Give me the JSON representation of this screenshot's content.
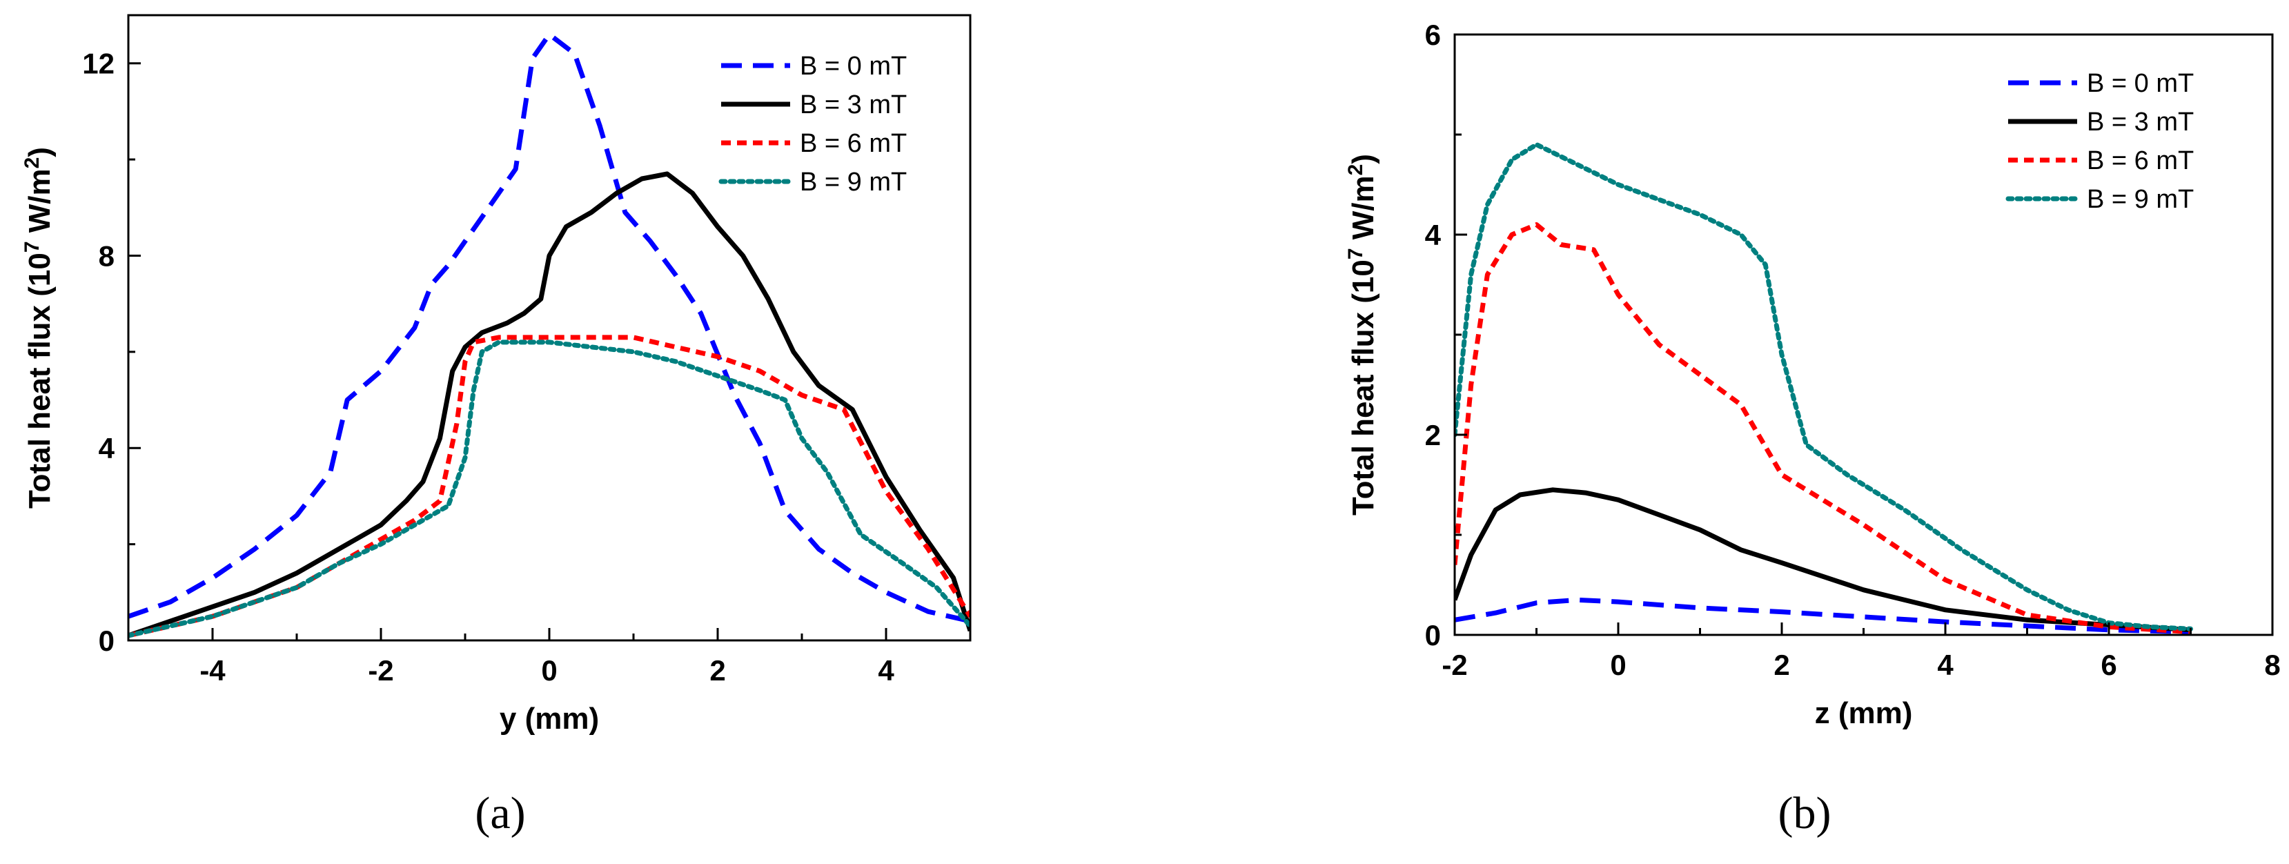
{
  "chart_data": [
    {
      "type": "line",
      "caption": "(a)",
      "xlabel": "y (mm)",
      "ylabel": {
        "pre": "Total heat flux (10",
        "sup": "7",
        "mid": " W/m",
        "sup2": "2",
        "post": ")"
      },
      "xlim": [
        -5,
        5
      ],
      "ylim": [
        0,
        13
      ],
      "xticks": [
        -4,
        -2,
        0,
        2,
        4
      ],
      "xtick_labels": [
        "-4",
        "-2",
        "0",
        "2",
        "4"
      ],
      "yticks": [
        0,
        4,
        8,
        12
      ],
      "ytick_labels": [
        "0",
        "4",
        "8",
        "12"
      ],
      "legend_position": "top-right",
      "series": [
        {
          "name": "B = 0 mT",
          "color": "#0000ff",
          "style": "dash",
          "x": [
            -5,
            -4.5,
            -4,
            -3.5,
            -3,
            -2.6,
            -2.4,
            -2,
            -1.6,
            -1.4,
            -1.2,
            -0.8,
            -0.4,
            -0.2,
            0,
            0.3,
            0.6,
            0.9,
            1.2,
            1.5,
            1.8,
            2.2,
            2.5,
            2.8,
            3.2,
            3.6,
            4,
            4.5,
            5
          ],
          "y": [
            0.5,
            0.8,
            1.3,
            1.9,
            2.6,
            3.5,
            5.0,
            5.6,
            6.5,
            7.4,
            7.8,
            8.8,
            9.8,
            12.1,
            12.6,
            12.2,
            10.7,
            8.9,
            8.3,
            7.6,
            6.8,
            5.1,
            4.1,
            2.7,
            1.9,
            1.4,
            1.0,
            0.6,
            0.4
          ]
        },
        {
          "name": "B = 3 mT",
          "color": "#000000",
          "style": "solid",
          "x": [
            -5,
            -4.5,
            -4,
            -3.5,
            -3,
            -2.5,
            -2,
            -1.7,
            -1.5,
            -1.3,
            -1.15,
            -1.0,
            -0.8,
            -0.5,
            -0.3,
            -0.1,
            0,
            0.2,
            0.5,
            0.8,
            1.1,
            1.4,
            1.7,
            2.0,
            2.3,
            2.6,
            2.9,
            3.2,
            3.6,
            4.0,
            4.4,
            4.8,
            5
          ],
          "y": [
            0.1,
            0.4,
            0.7,
            1.0,
            1.4,
            1.9,
            2.4,
            2.9,
            3.3,
            4.2,
            5.6,
            6.1,
            6.4,
            6.6,
            6.8,
            7.1,
            8.0,
            8.6,
            8.9,
            9.3,
            9.6,
            9.7,
            9.3,
            8.6,
            8.0,
            7.1,
            6.0,
            5.3,
            4.8,
            3.4,
            2.3,
            1.3,
            0.2
          ]
        },
        {
          "name": "B = 6 mT",
          "color": "#ff0000",
          "style": "dash-short",
          "x": [
            -5,
            -4.5,
            -4,
            -3.5,
            -3,
            -2.5,
            -2,
            -1.6,
            -1.3,
            -1.1,
            -1.0,
            -0.9,
            -0.6,
            -0.3,
            0,
            0.5,
            1.0,
            1.5,
            2.0,
            2.5,
            3.0,
            3.5,
            4.0,
            4.5,
            5
          ],
          "y": [
            0.1,
            0.3,
            0.5,
            0.8,
            1.1,
            1.6,
            2.1,
            2.5,
            2.9,
            4.5,
            5.8,
            6.2,
            6.3,
            6.3,
            6.3,
            6.3,
            6.3,
            6.1,
            5.9,
            5.6,
            5.1,
            4.8,
            3.1,
            1.9,
            0.5
          ]
        },
        {
          "name": "B = 9 mT",
          "color": "#008080",
          "style": "dot",
          "x": [
            -5,
            -4.5,
            -4,
            -3.5,
            -3,
            -2.5,
            -2,
            -1.6,
            -1.2,
            -1.0,
            -0.9,
            -0.8,
            -0.6,
            -0.3,
            0,
            0.5,
            1.0,
            1.5,
            2.0,
            2.5,
            2.8,
            3.0,
            3.3,
            3.7,
            4.2,
            4.6,
            5
          ],
          "y": [
            0.1,
            0.3,
            0.5,
            0.8,
            1.1,
            1.6,
            2.0,
            2.4,
            2.8,
            3.8,
            5.2,
            6.0,
            6.2,
            6.2,
            6.2,
            6.1,
            6.0,
            5.8,
            5.5,
            5.2,
            5.0,
            4.2,
            3.5,
            2.2,
            1.6,
            1.1,
            0.3
          ]
        }
      ]
    },
    {
      "type": "line",
      "caption": "(b)",
      "xlabel": "z (mm)",
      "ylabel": {
        "pre": "Total heat flux (10",
        "sup": "7",
        "mid": " W/m",
        "sup2": "2",
        "post": ")"
      },
      "xlim": [
        -2,
        8
      ],
      "ylim": [
        0,
        6
      ],
      "xticks": [
        -2,
        0,
        2,
        4,
        6,
        8
      ],
      "xtick_labels": [
        "-2",
        "0",
        "2",
        "4",
        "6",
        "8"
      ],
      "yticks": [
        0,
        2,
        4,
        6
      ],
      "ytick_labels": [
        "0",
        "2",
        "4",
        "6"
      ],
      "legend_position": "top-right",
      "series": [
        {
          "name": "B = 0 mT",
          "color": "#0000ff",
          "style": "dash",
          "x": [
            -2,
            -1.5,
            -1,
            -0.5,
            0,
            0.5,
            1,
            1.5,
            2,
            3,
            4,
            5,
            6,
            7
          ],
          "y": [
            0.15,
            0.22,
            0.32,
            0.35,
            0.33,
            0.3,
            0.27,
            0.25,
            0.23,
            0.18,
            0.13,
            0.09,
            0.05,
            0.03
          ]
        },
        {
          "name": "B = 3 mT",
          "color": "#000000",
          "style": "solid",
          "x": [
            -2,
            -1.8,
            -1.5,
            -1.2,
            -0.8,
            -0.4,
            0,
            0.5,
            1,
            1.5,
            2,
            3,
            4,
            5,
            6,
            7
          ],
          "y": [
            0.35,
            0.8,
            1.25,
            1.4,
            1.45,
            1.42,
            1.35,
            1.2,
            1.05,
            0.85,
            0.72,
            0.45,
            0.25,
            0.15,
            0.1,
            0.05
          ]
        },
        {
          "name": "B = 6 mT",
          "color": "#ff0000",
          "style": "dash-short",
          "x": [
            -2,
            -1.8,
            -1.6,
            -1.3,
            -1,
            -0.7,
            -0.3,
            0,
            0.5,
            1,
            1.5,
            2,
            2.5,
            3,
            4,
            5,
            6,
            7
          ],
          "y": [
            0.7,
            2.5,
            3.6,
            4.0,
            4.1,
            3.9,
            3.85,
            3.4,
            2.9,
            2.6,
            2.3,
            1.6,
            1.35,
            1.1,
            0.55,
            0.2,
            0.08,
            0.03
          ]
        },
        {
          "name": "B = 9 mT",
          "color": "#008080",
          "style": "dot",
          "x": [
            -2,
            -1.8,
            -1.6,
            -1.3,
            -1,
            -0.5,
            0,
            0.5,
            1,
            1.5,
            1.8,
            2.0,
            2.3,
            2.8,
            3.5,
            4.2,
            5,
            5.5,
            6,
            6.5,
            7
          ],
          "y": [
            2.0,
            3.6,
            4.3,
            4.75,
            4.9,
            4.7,
            4.5,
            4.35,
            4.2,
            4.0,
            3.7,
            2.8,
            1.9,
            1.6,
            1.25,
            0.85,
            0.45,
            0.25,
            0.12,
            0.08,
            0.06
          ]
        }
      ]
    }
  ]
}
